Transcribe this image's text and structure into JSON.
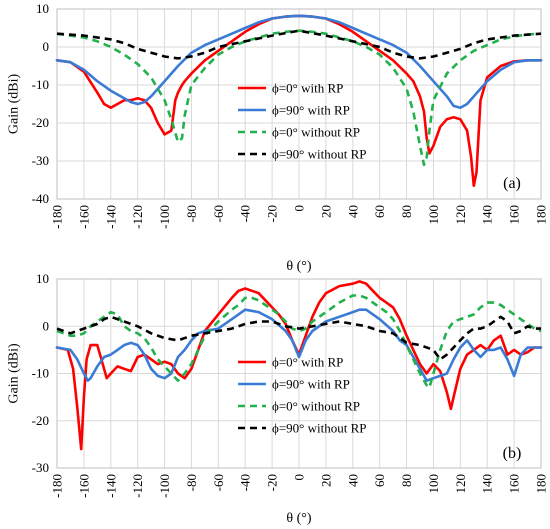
{
  "chart_data": [
    {
      "type": "line",
      "panel_label": "(a)",
      "xlabel": "θ (°)",
      "ylabel": "Gain (dBi)",
      "xlim": [
        -180,
        180
      ],
      "ylim": [
        -40,
        10
      ],
      "xticks": [
        -180,
        -160,
        -140,
        -120,
        -100,
        -80,
        -60,
        -40,
        -20,
        0,
        20,
        40,
        60,
        80,
        100,
        120,
        140,
        160,
        180
      ],
      "yticks": [
        -40,
        -30,
        -20,
        -10,
        0,
        10
      ],
      "grid": true,
      "legend_position": "center",
      "series": [
        {
          "name": "ϕ=0° with RP",
          "color": "#ff0000",
          "dash": "solid",
          "x": [
            -180,
            -170,
            -160,
            -150,
            -145,
            -140,
            -135,
            -130,
            -125,
            -120,
            -115,
            -110,
            -105,
            -100,
            -95,
            -92,
            -90,
            -87,
            -85,
            -80,
            -70,
            -60,
            -50,
            -40,
            -30,
            -20,
            -10,
            0,
            10,
            20,
            30,
            40,
            50,
            60,
            70,
            80,
            85,
            90,
            93,
            95,
            97,
            100,
            105,
            110,
            115,
            120,
            125,
            128,
            130,
            132,
            135,
            140,
            150,
            160,
            170,
            180
          ],
          "y": [
            -3.5,
            -4,
            -6.5,
            -12,
            -15,
            -16,
            -15,
            -14,
            -14,
            -13.5,
            -14,
            -16,
            -20,
            -23,
            -22,
            -14,
            -12,
            -10,
            -9,
            -7,
            -3.5,
            -1,
            1.5,
            4,
            6,
            7.5,
            8,
            8.2,
            8,
            7.5,
            6,
            4,
            1.5,
            -1,
            -3.5,
            -7,
            -9,
            -13,
            -17,
            -24,
            -28,
            -26,
            -21,
            -19,
            -18.5,
            -19,
            -22,
            -29,
            -36.5,
            -33,
            -14,
            -8,
            -5,
            -3.8,
            -3.5,
            -3.5
          ]
        },
        {
          "name": "ϕ=90° with RP",
          "color": "#3a7bd5",
          "dash": "solid",
          "x": [
            -180,
            -170,
            -160,
            -150,
            -140,
            -130,
            -125,
            -120,
            -115,
            -110,
            -100,
            -90,
            -80,
            -70,
            -60,
            -50,
            -40,
            -30,
            -20,
            -10,
            0,
            10,
            20,
            30,
            40,
            50,
            60,
            70,
            80,
            90,
            100,
            110,
            115,
            120,
            125,
            130,
            140,
            150,
            160,
            170,
            180
          ],
          "y": [
            -3.5,
            -4,
            -6,
            -9,
            -11.5,
            -13.5,
            -14.5,
            -15,
            -14.5,
            -13,
            -9,
            -5,
            -1.5,
            0.5,
            2,
            3.5,
            5,
            6.5,
            7.5,
            8,
            8.2,
            8,
            7.5,
            6.5,
            5,
            3.5,
            2,
            0.5,
            -1.5,
            -5,
            -9,
            -13,
            -15.5,
            -16,
            -15,
            -13,
            -9,
            -6,
            -4,
            -3.5,
            -3.5
          ]
        },
        {
          "name": "ϕ=0° without RP",
          "color": "#22b14c",
          "dash": "dashed",
          "x": [
            -180,
            -170,
            -160,
            -150,
            -140,
            -130,
            -120,
            -110,
            -100,
            -95,
            -90,
            -87,
            -85,
            -80,
            -70,
            -60,
            -50,
            -40,
            -30,
            -20,
            -10,
            0,
            10,
            20,
            30,
            40,
            50,
            60,
            70,
            80,
            85,
            90,
            93,
            95,
            97,
            100,
            110,
            120,
            130,
            140,
            150,
            160,
            170,
            180
          ],
          "y": [
            3.5,
            3,
            2.5,
            1.5,
            0,
            -2,
            -4.5,
            -8,
            -14,
            -19,
            -25,
            -24,
            -18,
            -10,
            -5.5,
            -2,
            0,
            1.5,
            2.5,
            3.5,
            4,
            4.3,
            4,
            3.5,
            2.5,
            1.5,
            0,
            -2,
            -5.5,
            -11,
            -17,
            -26,
            -31,
            -29,
            -22,
            -14,
            -7,
            -3.5,
            -1,
            0.5,
            2,
            2.8,
            3.3,
            3.5
          ]
        },
        {
          "name": "ϕ=90° without RP",
          "color": "#000000",
          "dash": "dashed",
          "x": [
            -180,
            -160,
            -140,
            -130,
            -120,
            -110,
            -100,
            -90,
            -80,
            -70,
            -60,
            -40,
            -20,
            0,
            20,
            40,
            60,
            70,
            80,
            90,
            100,
            110,
            120,
            130,
            140,
            160,
            180
          ],
          "y": [
            3.5,
            3,
            2,
            1,
            -0.5,
            -1.5,
            -2.5,
            -3,
            -2.5,
            -1.5,
            0,
            1.5,
            3,
            4.3,
            3,
            1.5,
            0,
            -1.5,
            -2.5,
            -3,
            -2.5,
            -1.5,
            -0.5,
            1,
            2,
            3,
            3.5
          ]
        }
      ]
    },
    {
      "type": "line",
      "panel_label": "(b)",
      "xlabel": "θ (°)",
      "ylabel": "Gain (dBi)",
      "xlim": [
        -180,
        180
      ],
      "ylim": [
        -30,
        10
      ],
      "xticks": [
        -180,
        -160,
        -140,
        -120,
        -100,
        -80,
        -60,
        -40,
        -20,
        0,
        20,
        40,
        60,
        80,
        100,
        120,
        140,
        160,
        180
      ],
      "yticks": [
        -30,
        -20,
        -10,
        0,
        10
      ],
      "grid": true,
      "legend_position": "bottom-center",
      "series": [
        {
          "name": "ϕ=0° with RP",
          "color": "#ff0000",
          "dash": "solid",
          "x": [
            -180,
            -172,
            -168,
            -165,
            -162,
            -160,
            -158,
            -155,
            -150,
            -147,
            -143,
            -140,
            -135,
            -130,
            -125,
            -120,
            -115,
            -110,
            -105,
            -100,
            -95,
            -90,
            -85,
            -80,
            -75,
            -70,
            -60,
            -50,
            -45,
            -40,
            -35,
            -30,
            -25,
            -20,
            -15,
            -10,
            -5,
            0,
            5,
            10,
            15,
            20,
            30,
            40,
            45,
            50,
            55,
            60,
            65,
            70,
            75,
            80,
            85,
            90,
            95,
            100,
            105,
            110,
            113,
            115,
            120,
            125,
            130,
            135,
            140,
            145,
            150,
            155,
            160,
            165,
            170,
            175,
            180
          ],
          "y": [
            -4.5,
            -5,
            -9,
            -17,
            -26,
            -15,
            -7,
            -4,
            -4,
            -7,
            -11,
            -10,
            -8.5,
            -9,
            -9.5,
            -6.5,
            -6,
            -7,
            -8,
            -7.5,
            -8,
            -10,
            -11,
            -9,
            -5,
            -1,
            2.5,
            6,
            7.5,
            8,
            7.5,
            7,
            5.5,
            4,
            2.5,
            0.5,
            -3,
            -6,
            -2,
            2,
            5,
            7,
            8.5,
            9,
            9.5,
            9,
            7.5,
            6,
            5,
            4,
            1.5,
            -2,
            -5,
            -8,
            -10,
            -8,
            -9.5,
            -14,
            -17.5,
            -15,
            -9,
            -6,
            -5,
            -4,
            -5,
            -3,
            -2,
            -6,
            -5,
            -6,
            -5.5,
            -4.5,
            -4.5
          ]
        },
        {
          "name": "ϕ=90° with RP",
          "color": "#3a7bd5",
          "dash": "solid",
          "x": [
            -180,
            -170,
            -165,
            -160,
            -157,
            -155,
            -150,
            -145,
            -140,
            -135,
            -130,
            -125,
            -120,
            -115,
            -110,
            -105,
            -100,
            -95,
            -90,
            -85,
            -80,
            -75,
            -70,
            -60,
            -50,
            -40,
            -30,
            -20,
            -10,
            -5,
            0,
            5,
            10,
            20,
            30,
            40,
            45,
            50,
            55,
            60,
            70,
            75,
            80,
            85,
            90,
            95,
            100,
            105,
            110,
            115,
            120,
            125,
            130,
            135,
            140,
            145,
            150,
            155,
            160,
            165,
            170,
            175,
            180
          ],
          "y": [
            -4.5,
            -5,
            -7,
            -10,
            -11.5,
            -11,
            -8.5,
            -6.5,
            -6,
            -5,
            -4,
            -3.5,
            -4,
            -6,
            -9,
            -10.5,
            -11,
            -10,
            -6.5,
            -5,
            -3,
            -1.5,
            -1,
            -0.5,
            1.5,
            3.5,
            3,
            1.5,
            -1,
            -3,
            -6.5,
            -3,
            -1,
            1,
            2,
            3,
            3.5,
            3.5,
            2.5,
            1.5,
            -1,
            -3,
            -4,
            -6.5,
            -9,
            -11.5,
            -11,
            -10.5,
            -10,
            -7,
            -4.5,
            -3,
            -5,
            -6.5,
            -5,
            -5,
            -4.5,
            -7,
            -10.5,
            -6,
            -4.5,
            -4.5,
            -4.5
          ]
        },
        {
          "name": "ϕ=0° without RP",
          "color": "#22b14c",
          "dash": "dashed",
          "x": [
            -180,
            -170,
            -165,
            -160,
            -155,
            -150,
            -145,
            -140,
            -135,
            -130,
            -125,
            -120,
            -115,
            -110,
            -105,
            -100,
            -95,
            -90,
            -85,
            -80,
            -75,
            -70,
            -60,
            -50,
            -45,
            -40,
            -35,
            -30,
            -25,
            -20,
            -15,
            -10,
            -5,
            0,
            5,
            10,
            20,
            30,
            40,
            45,
            50,
            55,
            60,
            65,
            70,
            75,
            80,
            85,
            90,
            95,
            97,
            100,
            105,
            110,
            115,
            120,
            125,
            130,
            135,
            140,
            145,
            150,
            155,
            160,
            165,
            170,
            175,
            180
          ],
          "y": [
            -1,
            -2,
            -2,
            -1.5,
            0,
            1,
            2,
            3,
            2.5,
            0,
            -1,
            -1.5,
            -2.5,
            -4.5,
            -7,
            -8.5,
            -10,
            -11.5,
            -10,
            -8,
            -5,
            -2,
            1,
            3.5,
            4.5,
            6,
            6,
            5.5,
            4.5,
            3.5,
            2.5,
            1,
            -0.5,
            -1,
            -0.5,
            1,
            3,
            5,
            6.5,
            6.5,
            6,
            5,
            4,
            3,
            1.5,
            -1,
            -4,
            -7,
            -10,
            -12.5,
            -13,
            -10,
            -5,
            -1,
            1,
            1.5,
            2,
            2.5,
            4,
            5,
            5,
            4.5,
            3.5,
            2.5,
            1.5,
            0.5,
            -0.5,
            -1
          ]
        },
        {
          "name": "ϕ=90° without RP",
          "color": "#000000",
          "dash": "dashed",
          "x": [
            -180,
            -175,
            -170,
            -165,
            -160,
            -155,
            -150,
            -145,
            -140,
            -130,
            -120,
            -110,
            -100,
            -90,
            -80,
            -70,
            -60,
            -50,
            -40,
            -30,
            -20,
            -10,
            0,
            10,
            20,
            30,
            40,
            50,
            60,
            70,
            80,
            90,
            100,
            105,
            110,
            115,
            120,
            125,
            130,
            135,
            140,
            145,
            150,
            155,
            160,
            165,
            170,
            175,
            180
          ],
          "y": [
            -0.5,
            -1,
            -1.5,
            -1,
            -0.5,
            0,
            0.5,
            1.5,
            2,
            1,
            0,
            -1.5,
            -2.5,
            -3,
            -2,
            -1.5,
            -1,
            -0.5,
            0.5,
            1,
            1,
            0,
            -0.5,
            0,
            0.5,
            1,
            0.5,
            0,
            -1,
            -1.5,
            -3.5,
            -4,
            -5,
            -7,
            -6,
            -4.5,
            -3,
            -1.5,
            -0.5,
            -0.5,
            0,
            1,
            2,
            1,
            -1.5,
            -1,
            0,
            -0.5,
            -0.5
          ]
        }
      ]
    }
  ]
}
